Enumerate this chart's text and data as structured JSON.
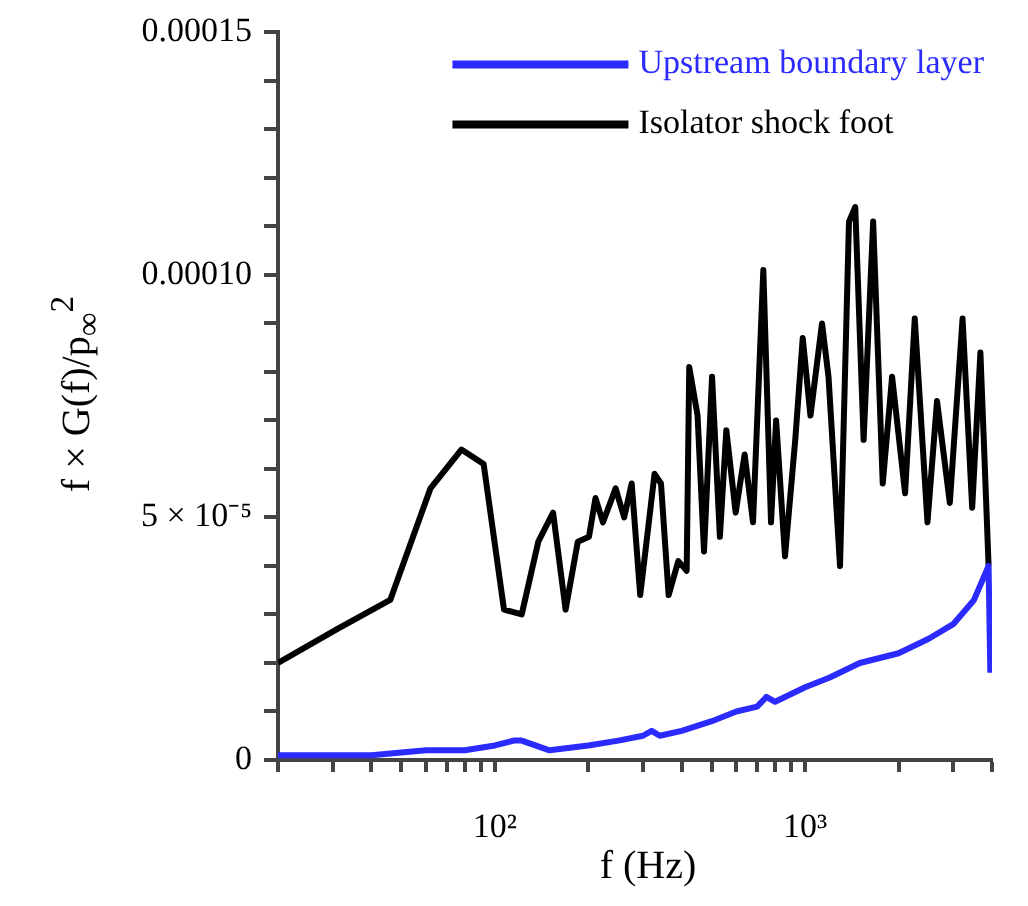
{
  "chart_data": {
    "type": "line",
    "xlabel": "f (Hz)",
    "ylabel": "f × G(f)/p$_{∞}$$^{2}$",
    "log": "x",
    "legend": "top right",
    "grid": false,
    "marker": "none",
    "line_style": "solid",
    "xlim": [
      20,
      4000
    ],
    "ylim": [
      0,
      0.00015
    ],
    "xticks": [
      {
        "value": 20,
        "label": null
      },
      {
        "value": 30,
        "label": null
      },
      {
        "value": 40,
        "label": null
      },
      {
        "value": 50,
        "label": null
      },
      {
        "value": 60,
        "label": null
      },
      {
        "value": 70,
        "label": null
      },
      {
        "value": 80,
        "label": null
      },
      {
        "value": 90,
        "label": null
      },
      {
        "value": 100,
        "label": "10²"
      },
      {
        "value": 200,
        "label": null
      },
      {
        "value": 300,
        "label": null
      },
      {
        "value": 400,
        "label": null
      },
      {
        "value": 500,
        "label": null
      },
      {
        "value": 600,
        "label": null
      },
      {
        "value": 700,
        "label": null
      },
      {
        "value": 800,
        "label": null
      },
      {
        "value": 900,
        "label": null
      },
      {
        "value": 1000,
        "label": "10³"
      },
      {
        "value": 2000,
        "label": null
      },
      {
        "value": 3000,
        "label": null
      },
      {
        "value": 4000,
        "label": null
      }
    ],
    "yticks": [
      0,
      {
        "value": 1e-05,
        "label": null
      },
      {
        "value": 2e-05,
        "label": null
      },
      {
        "value": 3e-05,
        "label": null
      },
      {
        "value": 4e-05,
        "label": null
      },
      {
        "value": 5e-05,
        "label": "5 × 10⁻⁵"
      },
      {
        "value": 6e-05,
        "label": null
      },
      {
        "value": 7e-05,
        "label": null
      },
      {
        "value": 8e-05,
        "label": null
      },
      {
        "value": 9e-05,
        "label": null
      },
      {
        "value": 0.0001,
        "label": "0.00010"
      },
      {
        "value": 0.00011,
        "label": null
      },
      {
        "value": 0.00012,
        "label": null
      },
      {
        "value": 0.00013,
        "label": null
      },
      {
        "value": 0.00014,
        "label": null
      },
      0.00015
    ],
    "series": [
      {
        "name": "Upstream boundary layer",
        "color": "#2b2bff",
        "x": [
          20,
          40,
          60,
          80,
          100,
          115,
          122,
          135,
          150,
          200,
          250,
          300,
          320,
          340,
          400,
          500,
          600,
          700,
          750,
          800,
          1000,
          1200,
          1500,
          2000,
          2500,
          3000,
          3500,
          3900,
          3950
        ],
        "values": [
          1e-06,
          1e-06,
          2e-06,
          2e-06,
          3e-06,
          4e-06,
          4e-06,
          3e-06,
          2e-06,
          3e-06,
          4e-06,
          5e-06,
          6e-06,
          5e-06,
          6e-06,
          8e-06,
          1e-05,
          1.1e-05,
          1.3e-05,
          1.2e-05,
          1.5e-05,
          1.7e-05,
          2e-05,
          2.2e-05,
          2.5e-05,
          2.8e-05,
          3.3e-05,
          4e-05,
          1.8e-05
        ]
      },
      {
        "name": "Isolator shock foot",
        "color": "#000000",
        "x": [
          20,
          31,
          46,
          62,
          78,
          92,
          107,
          122,
          138,
          154,
          169,
          185,
          201,
          211,
          223,
          245,
          261,
          276,
          294,
          327,
          343,
          363,
          390,
          415,
          423,
          450,
          472,
          501,
          531,
          557,
          597,
          638,
          679,
          733,
          776,
          806,
          861,
          929,
          982,
          1040,
          1133,
          1189,
          1295,
          1384,
          1450,
          1543,
          1656,
          1778,
          1906,
          2099,
          2255,
          2478,
          2660,
          2925,
          3215,
          3453,
          3670,
          3795,
          3900
        ],
        "values": [
          2e-05,
          2.7e-05,
          3.3e-05,
          5.6e-05,
          6.4e-05,
          6.1e-05,
          3.1e-05,
          3e-05,
          4.5e-05,
          5.1e-05,
          3.1e-05,
          4.5e-05,
          4.6e-05,
          5.4e-05,
          4.9e-05,
          5.6e-05,
          5e-05,
          5.7e-05,
          3.4e-05,
          5.9e-05,
          5.7e-05,
          3.4e-05,
          4.1e-05,
          3.9e-05,
          8.1e-05,
          7.1e-05,
          4.3e-05,
          7.9e-05,
          4.6e-05,
          6.8e-05,
          5.1e-05,
          6.3e-05,
          4.9e-05,
          0.000101,
          4.9e-05,
          7e-05,
          4.2e-05,
          6.6e-05,
          8.7e-05,
          7.1e-05,
          9e-05,
          7.9e-05,
          4e-05,
          0.000111,
          0.000114,
          6.6e-05,
          0.000111,
          5.7e-05,
          7.9e-05,
          5.5e-05,
          9.1e-05,
          4.9e-05,
          7.4e-05,
          5.3e-05,
          9.1e-05,
          5.2e-05,
          8.4e-05,
          6e-05,
          4e-05
        ]
      }
    ]
  }
}
